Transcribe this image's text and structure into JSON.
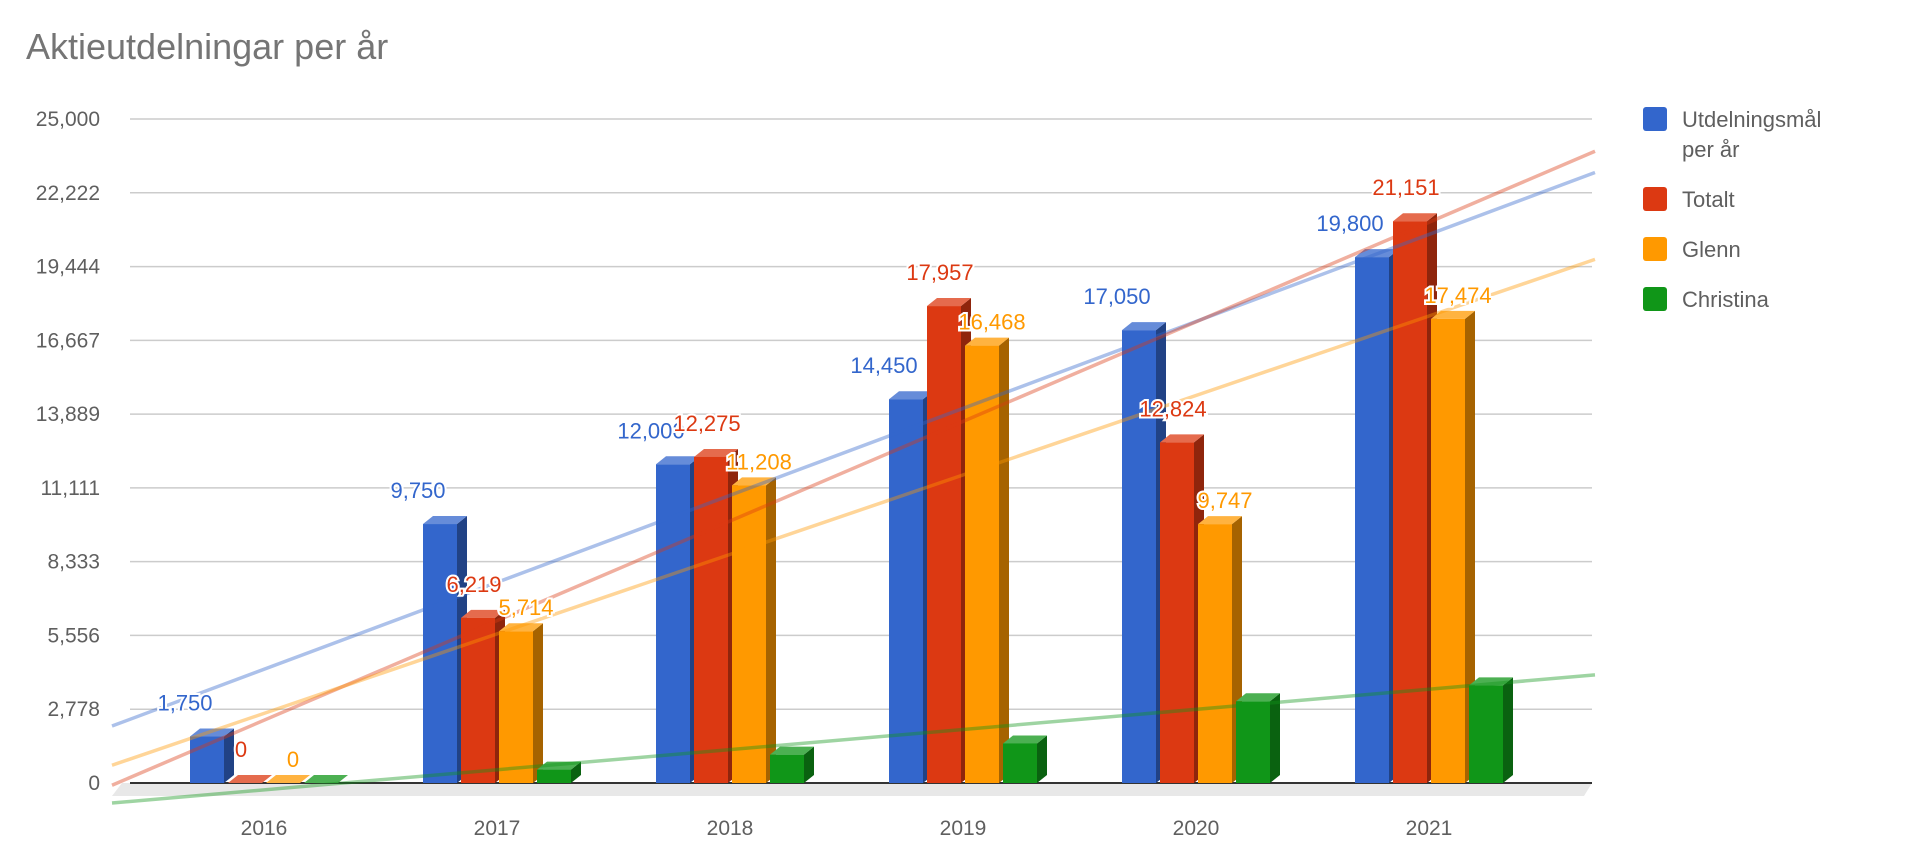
{
  "chart_data": {
    "type": "bar",
    "title": "Aktieutdelningar per år",
    "categories": [
      "2016",
      "2017",
      "2018",
      "2019",
      "2020",
      "2021"
    ],
    "ylim": [
      0,
      25000
    ],
    "yticks": [
      "0",
      "2,778",
      "5,556",
      "8,333",
      "11,111",
      "13,889",
      "16,667",
      "19,444",
      "22,222",
      "25,000"
    ],
    "ytick_values": [
      0,
      2778,
      5556,
      8333,
      11111,
      13889,
      16667,
      19444,
      22222,
      25000
    ],
    "grid": true,
    "legend_position": "right",
    "trendlines": true,
    "series": [
      {
        "name": "Utdelningsmål per år",
        "legend_lines": [
          "Utdelningsmål",
          "per år"
        ],
        "color": "#3366cc",
        "values": [
          1750,
          9750,
          12000,
          14450,
          17050,
          19800
        ],
        "labels": [
          "1,750",
          "9,750",
          "12,000",
          "14,450",
          "17,050",
          "19,800"
        ]
      },
      {
        "name": "Totalt",
        "legend_lines": [
          "Totalt"
        ],
        "color": "#dc3912",
        "values": [
          0,
          6219,
          12275,
          17957,
          12824,
          21151
        ],
        "labels": [
          "0",
          "6,219",
          "12,275",
          "17,957",
          "12,824",
          "21,151"
        ]
      },
      {
        "name": "Glenn",
        "legend_lines": [
          "Glenn"
        ],
        "color": "#ff9900",
        "values": [
          0,
          5714,
          11208,
          16468,
          9747,
          17474
        ],
        "labels": [
          "0",
          "5,714",
          "11,208",
          "16,468",
          "9,747",
          "17,474"
        ]
      },
      {
        "name": "Christina",
        "legend_lines": [
          "Christina"
        ],
        "color": "#109618",
        "values": [
          0,
          505,
          1067,
          1489,
          3077,
          3677
        ],
        "labels": []
      }
    ]
  }
}
